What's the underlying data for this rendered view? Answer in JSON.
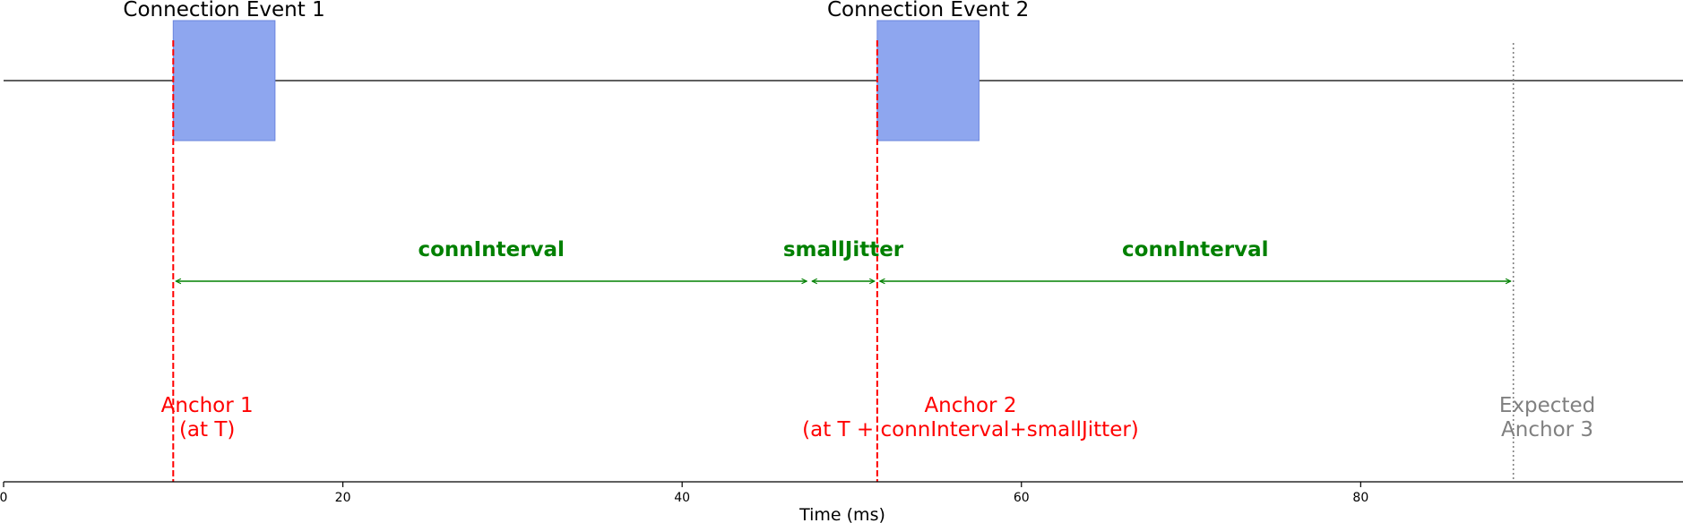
{
  "chart_data": {
    "type": "timeline",
    "xlabel": "Time (ms)",
    "xlim": [
      0,
      99
    ],
    "x_ticks": [
      0,
      20,
      40,
      60,
      80
    ],
    "events": [
      {
        "label": "Connection Event 1",
        "start": 10,
        "end": 16
      },
      {
        "label": "Connection Event 2",
        "start": 51.5,
        "end": 57.5
      }
    ],
    "anchors": [
      {
        "lines": [
          "Anchor 1",
          "(at T)"
        ],
        "x": 10,
        "text_x": 12,
        "style": "dashed",
        "color": "#ff0000"
      },
      {
        "lines": [
          "Anchor 2",
          "(at T + connInterval+smallJitter)"
        ],
        "x": 51.5,
        "text_x": 57,
        "style": "dashed",
        "color": "#ff0000"
      },
      {
        "lines": [
          "Expected",
          "Anchor 3"
        ],
        "x": 89,
        "text_x": 91,
        "style": "dotted",
        "color": "#808080"
      }
    ],
    "intervals": [
      {
        "label": "connInterval",
        "from": 10,
        "to": 47.5
      },
      {
        "label": "smallJitter",
        "from": 47.5,
        "to": 51.5
      },
      {
        "label": "connInterval",
        "from": 51.5,
        "to": 89
      }
    ],
    "colors": {
      "event_fill": "#8ea6ef",
      "event_stroke": "#6b85dd",
      "interval": "#008000",
      "anchor": "#ff0000",
      "expected": "#808080",
      "axis": "#000000"
    }
  }
}
